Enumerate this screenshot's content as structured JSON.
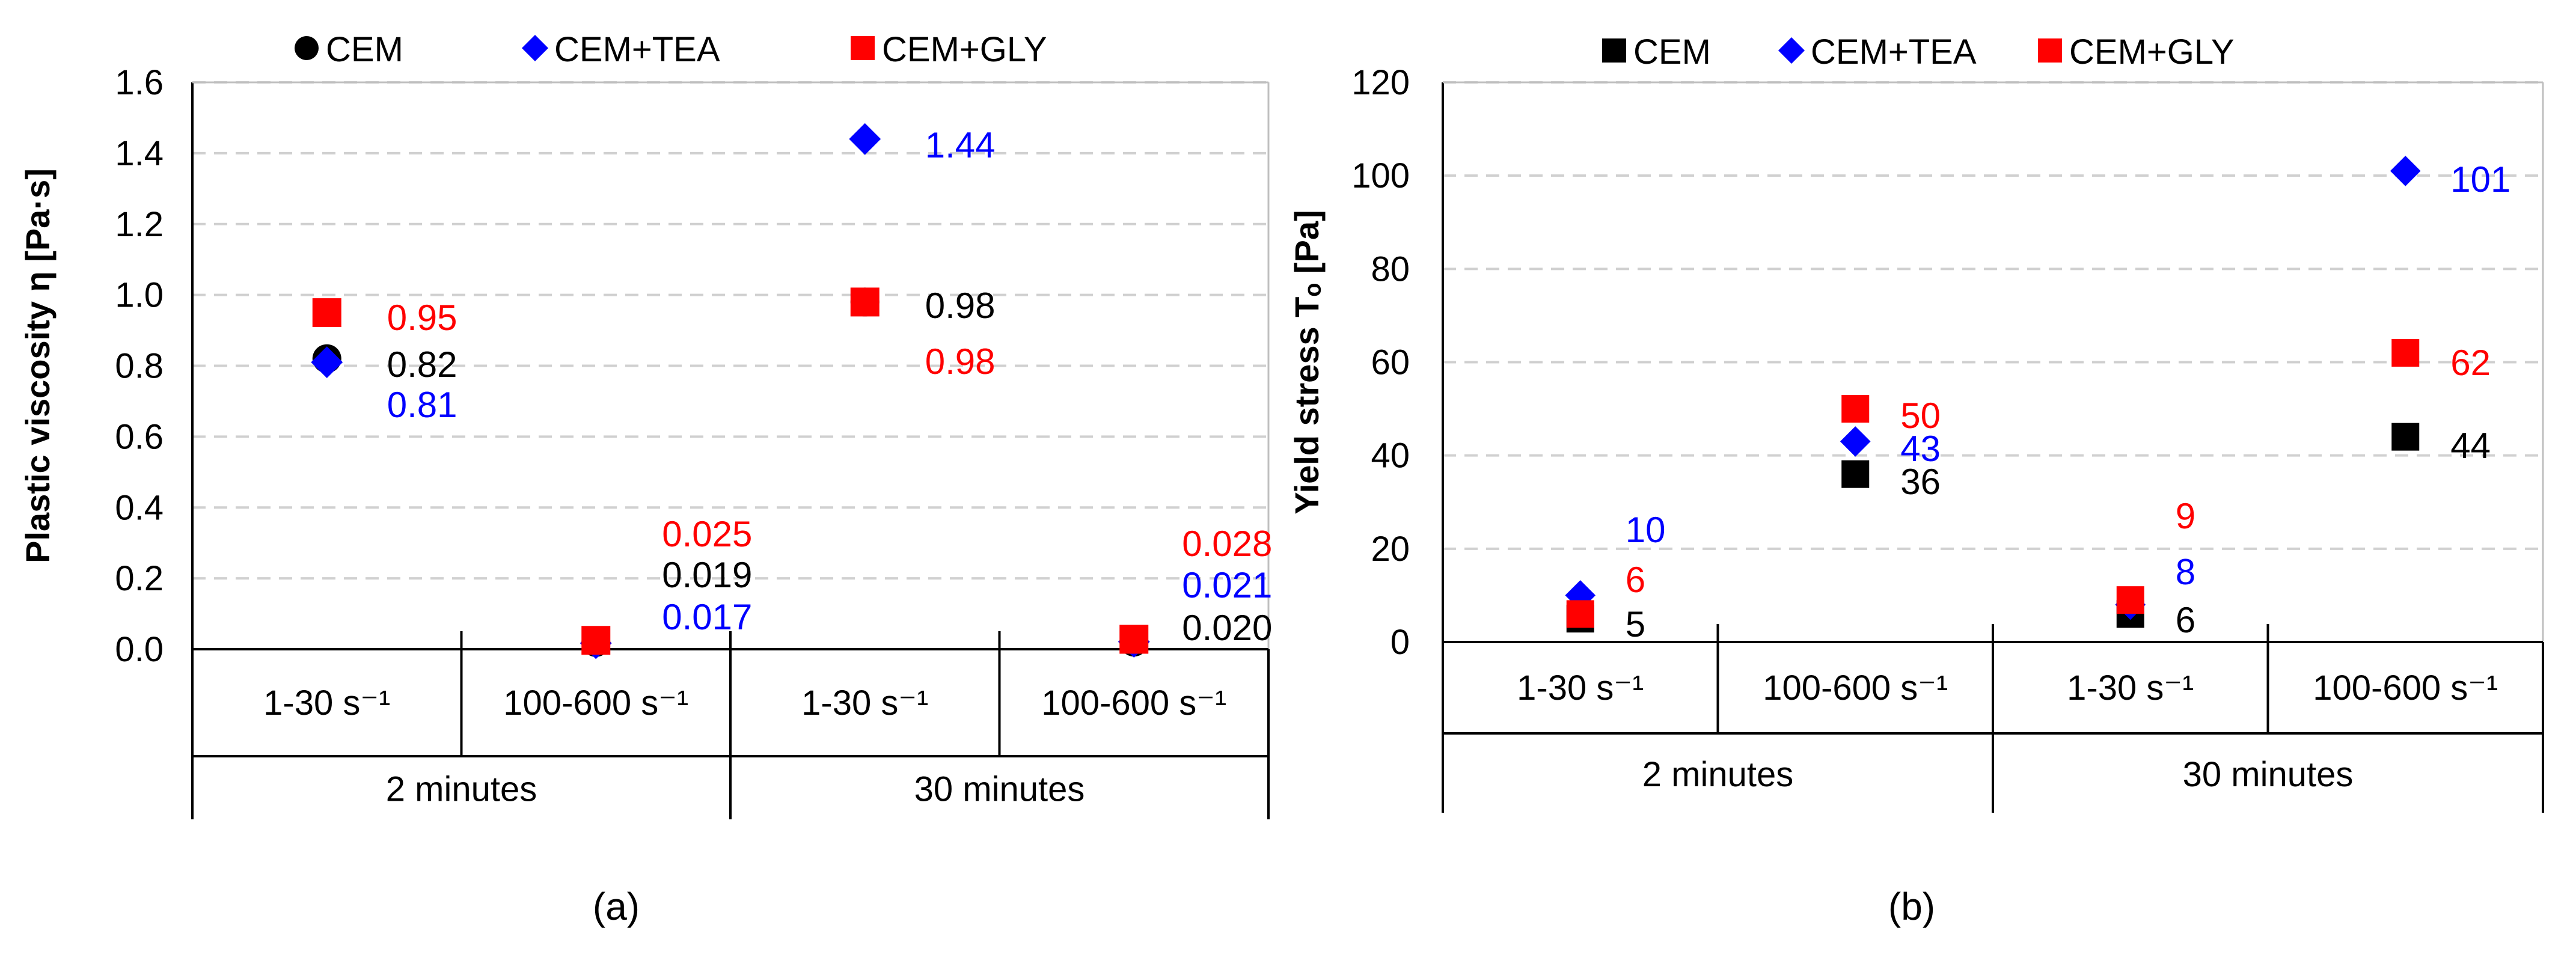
{
  "chart_data": [
    {
      "panel": "(a)",
      "type": "scatter",
      "title": "",
      "ylabel": "Plastic viscosity η [Pa·s]",
      "ylim": [
        0,
        1.6
      ],
      "yticks": [
        "0.0",
        "0.2",
        "0.4",
        "0.6",
        "0.8",
        "1.0",
        "1.2",
        "1.4",
        "1.6"
      ],
      "ytick_values": [
        0,
        0.2,
        0.4,
        0.6,
        0.8,
        1.0,
        1.2,
        1.4,
        1.6
      ],
      "grid": true,
      "legend_position": "top",
      "categories": [
        "1-30 s⁻¹",
        "100-600 s⁻¹",
        "1-30 s⁻¹",
        "100-600 s⁻¹"
      ],
      "groups": [
        "2 minutes",
        "30 minutes"
      ],
      "series": [
        {
          "name": "CEM",
          "marker": "circle",
          "color": "#000000",
          "values": [
            0.82,
            0.019,
            0.98,
            0.02
          ],
          "labels": [
            "0.82",
            "0.019",
            "0.98",
            "0.020"
          ]
        },
        {
          "name": "CEM+TEA",
          "marker": "diamond",
          "color": "#0000ff",
          "values": [
            0.81,
            0.017,
            1.44,
            0.021
          ],
          "labels": [
            "0.81",
            "0.017",
            "1.44",
            "0.021"
          ]
        },
        {
          "name": "CEM+GLY",
          "marker": "square",
          "color": "#ff0000",
          "values": [
            0.95,
            0.025,
            0.98,
            0.028
          ],
          "labels": [
            "0.95",
            "0.025",
            "0.98",
            "0.028"
          ]
        }
      ]
    },
    {
      "panel": "(b)",
      "type": "scatter",
      "title": "",
      "ylabel": "Yield stress Τₒ [Pa]",
      "ylim": [
        0,
        120
      ],
      "yticks": [
        "0",
        "20",
        "40",
        "60",
        "80",
        "100",
        "120"
      ],
      "ytick_values": [
        0,
        20,
        40,
        60,
        80,
        100,
        120
      ],
      "grid": true,
      "legend_position": "top",
      "categories": [
        "1-30 s⁻¹",
        "100-600 s⁻¹",
        "1-30 s⁻¹",
        "100-600 s⁻¹"
      ],
      "groups": [
        "2 minutes",
        "30 minutes"
      ],
      "series": [
        {
          "name": "CEM",
          "marker": "square",
          "color": "#000000",
          "values": [
            5,
            36,
            6,
            44
          ],
          "labels": [
            "5",
            "36",
            "6",
            "44"
          ]
        },
        {
          "name": "CEM+TEA",
          "marker": "diamond",
          "color": "#0000ff",
          "values": [
            10,
            43,
            8,
            101
          ],
          "labels": [
            "10",
            "43",
            "8",
            "101"
          ]
        },
        {
          "name": "CEM+GLY",
          "marker": "square",
          "color": "#ff0000",
          "values": [
            6,
            50,
            9,
            62
          ],
          "labels": [
            "6",
            "50",
            "9",
            "62"
          ]
        }
      ]
    }
  ]
}
